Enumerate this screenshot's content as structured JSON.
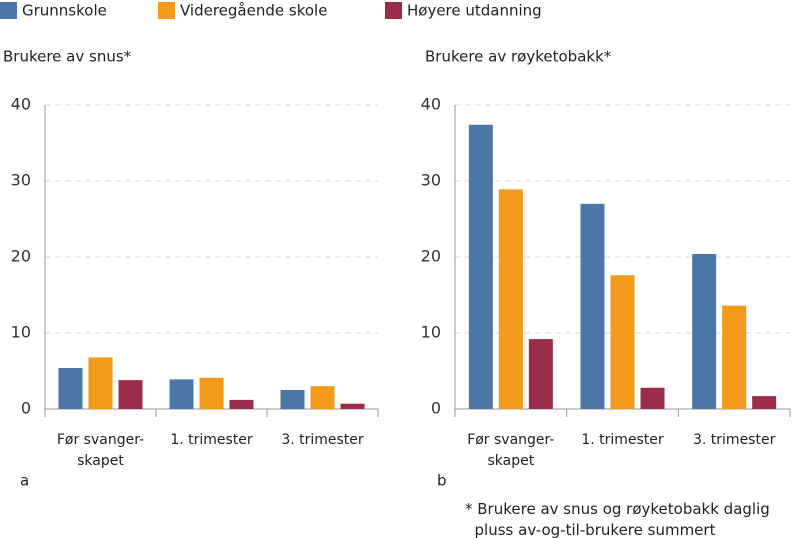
{
  "chart_data": [
    {
      "type": "bar",
      "title": "Brukere av snus*",
      "label": "a",
      "categories": [
        "Før svanger-\nskapet",
        "1. trimester",
        "3. trimester"
      ],
      "series": [
        {
          "name": "Grunnskole",
          "color": "#4a76a8",
          "values": [
            5.4,
            3.9,
            2.5
          ]
        },
        {
          "name": "Videregående skole",
          "color": "#f39a1a",
          "values": [
            6.8,
            4.1,
            3.0
          ]
        },
        {
          "name": "Høyere utdanning",
          "color": "#9b2d4a",
          "values": [
            3.8,
            1.2,
            0.7
          ]
        }
      ],
      "ylim": [
        0,
        40
      ],
      "yticks": [
        0,
        10,
        20,
        30,
        40
      ],
      "grid": true
    },
    {
      "type": "bar",
      "title": "Brukere av røyketobakk*",
      "label": "b",
      "categories": [
        "Før svanger-\nskapet",
        "1. trimester",
        "3. trimester"
      ],
      "series": [
        {
          "name": "Grunnskole",
          "color": "#4a76a8",
          "values": [
            37.4,
            27.0,
            20.4
          ]
        },
        {
          "name": "Videregående skole",
          "color": "#f39a1a",
          "values": [
            28.9,
            17.6,
            13.6
          ]
        },
        {
          "name": "Høyere utdanning",
          "color": "#9b2d4a",
          "values": [
            9.2,
            2.8,
            1.7
          ]
        }
      ],
      "ylim": [
        0,
        40
      ],
      "yticks": [
        0,
        10,
        20,
        30,
        40
      ],
      "grid": true
    }
  ],
  "footnote": "* Brukere av snus og røyketobakk daglig\n  pluss av-og-til-brukere summert"
}
